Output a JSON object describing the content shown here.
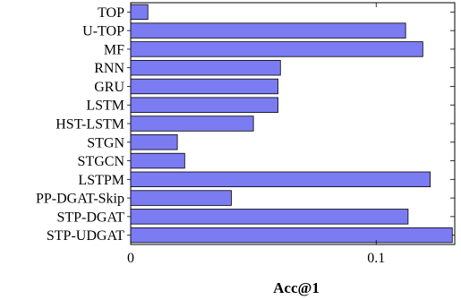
{
  "chart_data": {
    "type": "bar",
    "orientation": "horizontal",
    "categories": [
      "TOP",
      "U-TOP",
      "MF",
      "RNN",
      "GRU",
      "LSTM",
      "HST-LSTM",
      "STGN",
      "STGCN",
      "LSTPM",
      "PP-DGAT-Skip",
      "STP-DGAT",
      "STP-UDGAT"
    ],
    "values": [
      0.007,
      0.112,
      0.119,
      0.061,
      0.06,
      0.06,
      0.05,
      0.019,
      0.022,
      0.122,
      0.041,
      0.113,
      0.131
    ],
    "xlabel": "Acc@1",
    "xlim": [
      0,
      0.132
    ],
    "xticks": [
      {
        "value": 0,
        "label": "0"
      },
      {
        "value": 0.1,
        "label": "0.1"
      }
    ],
    "bar_color": "#7b7bf2",
    "grid": false
  }
}
